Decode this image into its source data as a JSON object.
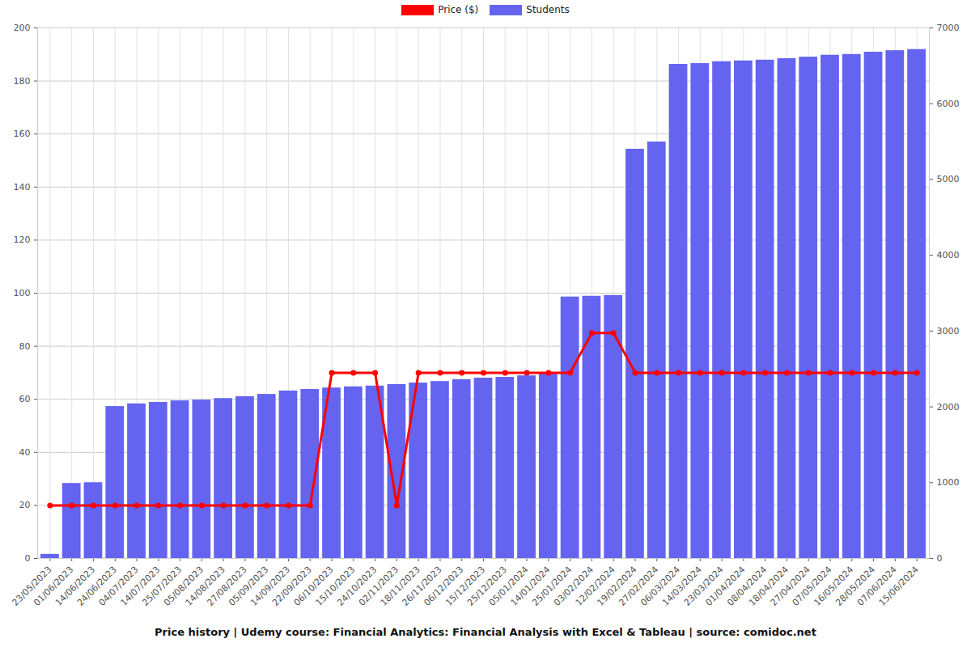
{
  "chart_data": {
    "type": "bar",
    "title": "Price history | Udemy course: Financial Analytics: Financial Analysis with Excel & Tableau | source: comidoc.net",
    "categories": [
      "23/05/2023",
      "01/06/2023",
      "14/06/2023",
      "24/06/2023",
      "04/07/2023",
      "14/07/2023",
      "25/07/2023",
      "05/08/2023",
      "14/08/2023",
      "27/08/2023",
      "05/09/2023",
      "14/09/2023",
      "22/09/2023",
      "06/10/2023",
      "15/10/2023",
      "24/10/2023",
      "02/11/2023",
      "18/11/2023",
      "26/11/2023",
      "06/12/2023",
      "15/12/2023",
      "25/12/2023",
      "05/01/2024",
      "14/01/2024",
      "25/01/2024",
      "03/02/2024",
      "12/02/2024",
      "19/02/2024",
      "27/02/2024",
      "06/03/2024",
      "14/03/2024",
      "23/03/2024",
      "01/04/2024",
      "08/04/2024",
      "18/04/2024",
      "27/04/2024",
      "07/05/2024",
      "16/05/2024",
      "28/05/2024",
      "07/06/2024",
      "15/06/2024"
    ],
    "series": [
      {
        "name": "Price ($)",
        "type": "line",
        "color": "#ff0000",
        "marker": "circle",
        "values": [
          20,
          20,
          20,
          20,
          20,
          20,
          20,
          20,
          20,
          20,
          20,
          20,
          20,
          70,
          70,
          70,
          20,
          70,
          70,
          70,
          70,
          70,
          70,
          70,
          70,
          85,
          85,
          70,
          70,
          70,
          70,
          70,
          70,
          70,
          70,
          70,
          70,
          70,
          70,
          70,
          70
        ]
      },
      {
        "name": "Students",
        "type": "bar",
        "color": "#6464f0",
        "axis": "y2",
        "values": [
          55,
          990,
          1000,
          2005,
          2040,
          2060,
          2080,
          2090,
          2110,
          2135,
          2165,
          2210,
          2230,
          2250,
          2265,
          2275,
          2295,
          2315,
          2335,
          2360,
          2380,
          2390,
          2410,
          2435,
          3450,
          3460,
          3470,
          5400,
          5495,
          6520,
          6530,
          6555,
          6565,
          6575,
          6595,
          6615,
          6640,
          6650,
          6680,
          6700,
          6715
        ]
      }
    ],
    "ylim": [
      0,
      200
    ],
    "yticks": [
      0,
      20,
      40,
      60,
      80,
      100,
      120,
      140,
      160,
      180,
      200
    ],
    "y2lim": [
      0,
      7000
    ],
    "y2ticks": [
      0,
      1000,
      2000,
      3000,
      4000,
      5000,
      6000,
      7000
    ],
    "grid": true,
    "legend": "top"
  }
}
